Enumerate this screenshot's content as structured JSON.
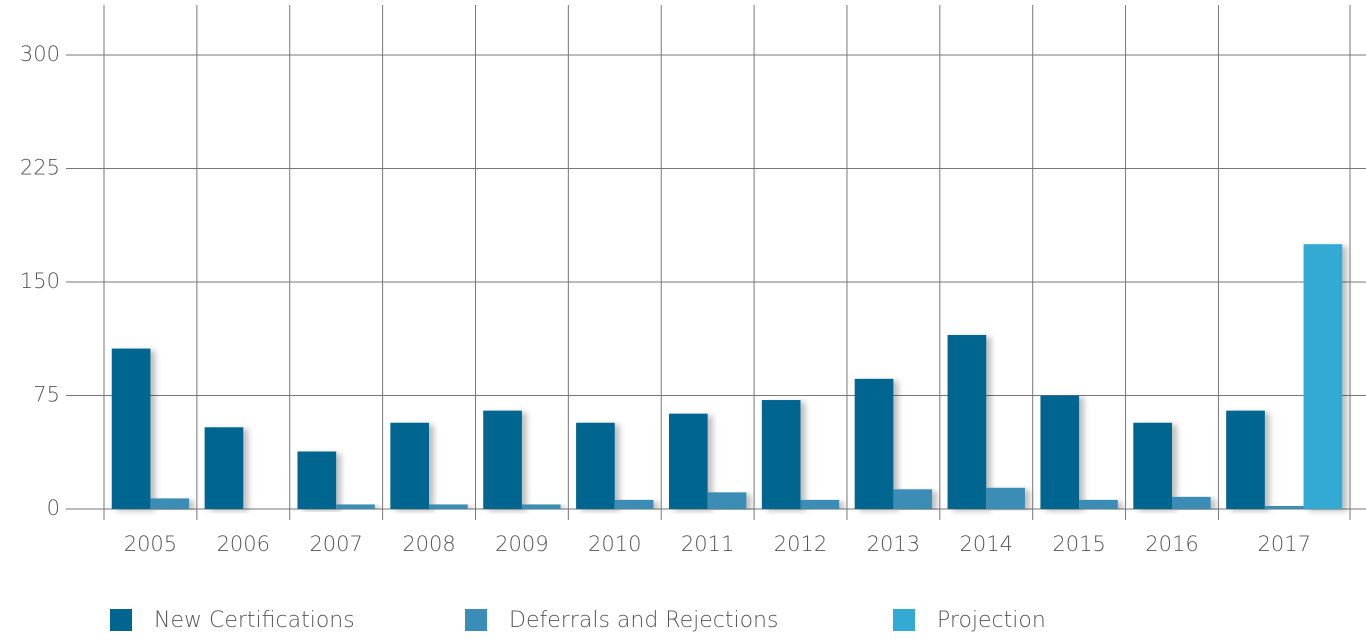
{
  "chart_data": {
    "type": "bar",
    "categories": [
      "2005",
      "2006",
      "2007",
      "2008",
      "2009",
      "2010",
      "2011",
      "2012",
      "2013",
      "2014",
      "2015",
      "2016",
      "2017"
    ],
    "series": [
      {
        "name": "New Certifications",
        "color": "#00668f",
        "values": [
          106,
          54,
          38,
          57,
          65,
          57,
          63,
          72,
          86,
          115,
          75,
          57,
          65
        ]
      },
      {
        "name": "Deferrals and Rejections",
        "color": "#3a8db6",
        "values": [
          7,
          0,
          3,
          3,
          3,
          6,
          11,
          6,
          13,
          14,
          6,
          8,
          2
        ]
      },
      {
        "name": "Projection",
        "color": "#33aad3",
        "values": [
          null,
          null,
          null,
          null,
          null,
          null,
          null,
          null,
          null,
          null,
          null,
          null,
          175
        ]
      }
    ],
    "ylim": [
      0,
      300
    ],
    "yticks": [
      0,
      75,
      150,
      225,
      300
    ],
    "grid": true,
    "legend": "bottom"
  }
}
